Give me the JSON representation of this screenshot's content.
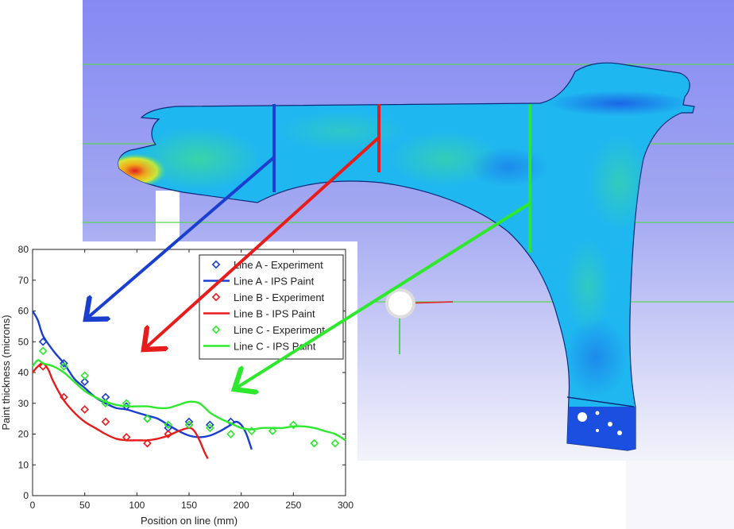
{
  "chart_data": {
    "type": "line",
    "xlabel": "Position on line (mm)",
    "ylabel": "Paint thickness (microns)",
    "xlim": [
      0,
      300
    ],
    "ylim": [
      0,
      80
    ],
    "xticks": [
      0,
      50,
      100,
      150,
      200,
      250,
      300
    ],
    "yticks": [
      0,
      10,
      20,
      30,
      40,
      50,
      60,
      70,
      80
    ],
    "grid": false,
    "legend_position": "top-right",
    "series": [
      {
        "name": "Line A - Experiment",
        "kind": "scatter",
        "marker": "diamond",
        "color": "#1a3fcf",
        "x": [
          10,
          30,
          50,
          70,
          90,
          110,
          130,
          150,
          170,
          190
        ],
        "y": [
          50,
          43,
          37,
          32,
          29,
          25,
          22,
          24,
          23,
          24
        ]
      },
      {
        "name": "Line A - IPS Paint",
        "kind": "line",
        "color": "#1a3fcf",
        "x": [
          0,
          5,
          10,
          20,
          30,
          40,
          50,
          60,
          70,
          80,
          90,
          100,
          110,
          120,
          130,
          140,
          150,
          160,
          170,
          180,
          190,
          195,
          200,
          205,
          210
        ],
        "y": [
          60,
          57,
          52,
          47,
          43,
          38,
          35,
          32,
          30,
          28.5,
          28,
          27,
          26,
          25,
          23,
          21,
          19.5,
          19,
          19.5,
          21,
          23,
          24,
          23,
          20,
          15
        ]
      },
      {
        "name": "Line B - Experiment",
        "kind": "scatter",
        "marker": "diamond",
        "color": "#e81c1c",
        "x": [
          10,
          30,
          50,
          70,
          90,
          110,
          130,
          150
        ],
        "y": [
          42,
          32,
          28,
          24,
          19,
          17,
          20,
          23
        ]
      },
      {
        "name": "Line B - IPS Paint",
        "kind": "line",
        "color": "#e81c1c",
        "x": [
          0,
          5,
          10,
          15,
          20,
          30,
          40,
          50,
          60,
          70,
          80,
          90,
          100,
          110,
          120,
          130,
          140,
          150,
          155,
          160,
          165,
          168
        ],
        "y": [
          40,
          42,
          43,
          41,
          37,
          31,
          27,
          24,
          22,
          20,
          18.5,
          18,
          18,
          18,
          18.5,
          19.5,
          21,
          22,
          21,
          18,
          14,
          12
        ]
      },
      {
        "name": "Line C - Experiment",
        "kind": "scatter",
        "marker": "diamond",
        "color": "#2ee82e",
        "x": [
          10,
          30,
          50,
          70,
          90,
          110,
          130,
          150,
          170,
          190,
          210,
          230,
          250,
          270,
          290
        ],
        "y": [
          47,
          42,
          39,
          30,
          30,
          25,
          23,
          23,
          22,
          20,
          21,
          21,
          23,
          17,
          17
        ]
      },
      {
        "name": "Line C - IPS Paint",
        "kind": "line",
        "color": "#2ee82e",
        "x": [
          0,
          5,
          10,
          20,
          30,
          40,
          50,
          60,
          70,
          80,
          90,
          100,
          110,
          120,
          130,
          140,
          150,
          160,
          170,
          180,
          190,
          200,
          210,
          220,
          230,
          240,
          250,
          260,
          270,
          280,
          290,
          300
        ],
        "y": [
          42,
          44,
          43,
          42,
          40,
          37,
          34,
          32,
          30.5,
          29.5,
          29,
          29,
          29,
          28.5,
          28.5,
          29.5,
          30.5,
          30,
          27,
          25,
          23.5,
          22,
          21.5,
          22,
          22,
          22,
          22.5,
          22.5,
          22,
          21,
          20,
          18
        ]
      }
    ]
  },
  "colors": {
    "background_top": "#8a8ef5",
    "background_bottom": "#f4f4fb",
    "line_a": "#1a3fcf",
    "line_b": "#e81c1c",
    "line_c": "#2ee82e",
    "fender": "#1fb7f0"
  },
  "icons": [
    "orientation-gizmo-icon"
  ]
}
